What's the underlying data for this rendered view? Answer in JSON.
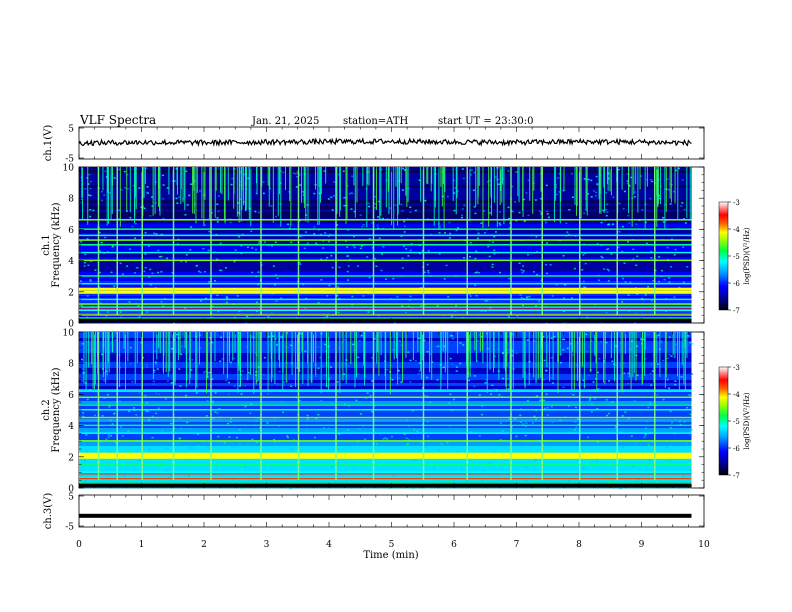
{
  "header": {
    "title": "VLF  Spectra",
    "date": "Jan. 21, 2025",
    "station": "station=ATH",
    "start_ut": "start  UT  =   23:30:0"
  },
  "colorbar": {
    "label": "log(PSD)(V²/Hz)",
    "ticks": [
      "-3",
      "-4",
      "-5",
      "-6",
      "-7"
    ]
  },
  "chart_data": [
    {
      "type": "line",
      "name": "ch.1 time series",
      "ylabel": "ch.1(V)",
      "ylim": [
        -5,
        5
      ],
      "yticks": [
        "5",
        "-5"
      ],
      "x": [
        0,
        1,
        2,
        3,
        4,
        5,
        6,
        7,
        8,
        9,
        9.8
      ],
      "y": [
        0,
        0.2,
        0.1,
        0.3,
        0.4,
        0.5,
        0.3,
        0.2,
        0.4,
        0.3,
        0
      ]
    },
    {
      "type": "heatmap",
      "name": "ch.1 spectrogram",
      "ylabel_top": "ch.1",
      "ylabel": "Frequency  (kHz)",
      "ylim": [
        0,
        10
      ],
      "yticks": [
        "0",
        "2",
        "4",
        "6",
        "8",
        "10"
      ],
      "xlim": [
        0,
        10
      ],
      "data_end_min": 9.8,
      "zlim": [
        -7,
        -3
      ],
      "colormap": [
        "#000080",
        "#0000ff",
        "#0080ff",
        "#00ffff",
        "#00ff80",
        "#80ff00",
        "#ffff00",
        "#ff8000",
        "#ff0000",
        "#ffc0c0",
        "#ffffff"
      ],
      "bands_khz": [
        0.3,
        0.5,
        0.8,
        1.0,
        1.2,
        1.5,
        2.0,
        2.2,
        2.5,
        3.0,
        4.0,
        4.5,
        5.0,
        5.3,
        5.6,
        6.0,
        6.6
      ],
      "sferic_times_min": [
        0.3,
        0.6,
        1.0,
        1.5,
        2.1,
        2.9,
        3.5,
        4.1,
        4.7,
        5.5,
        6.2,
        6.9,
        7.4,
        8.0,
        8.6,
        9.2
      ]
    },
    {
      "type": "heatmap",
      "name": "ch.2 spectrogram",
      "ylabel_top": "ch.2",
      "ylabel": "Frequency  (kHz)",
      "ylim": [
        0,
        10
      ],
      "yticks": [
        "0",
        "2",
        "4",
        "6",
        "8",
        "10"
      ],
      "xlim": [
        0,
        10
      ],
      "data_end_min": 9.8,
      "zlim": [
        -7,
        -3
      ],
      "bands_khz": [
        0.3,
        0.6,
        1.0,
        1.5,
        2.0,
        2.1,
        2.2,
        3.0,
        3.5,
        4.0,
        4.5,
        5.0,
        5.3,
        5.8,
        6.2
      ],
      "sferic_times_min": [
        0.3,
        0.6,
        1.0,
        1.5,
        2.1,
        2.9,
        3.5,
        4.1,
        4.7,
        5.5,
        6.2,
        6.9,
        7.4,
        8.0,
        8.6,
        9.2
      ]
    },
    {
      "type": "line",
      "name": "ch.3 time series",
      "ylabel": "ch.3(V)",
      "ylim": [
        -5,
        5
      ],
      "yticks": [
        "5",
        "-5"
      ],
      "x": [
        0,
        9.8
      ],
      "y": [
        -1.5,
        -1.5
      ]
    }
  ],
  "xaxis": {
    "label": "Time  (min)",
    "ticks": [
      "0",
      "1",
      "2",
      "3",
      "4",
      "5",
      "6",
      "7",
      "8",
      "9",
      "10"
    ],
    "xlim": [
      0,
      10
    ]
  }
}
